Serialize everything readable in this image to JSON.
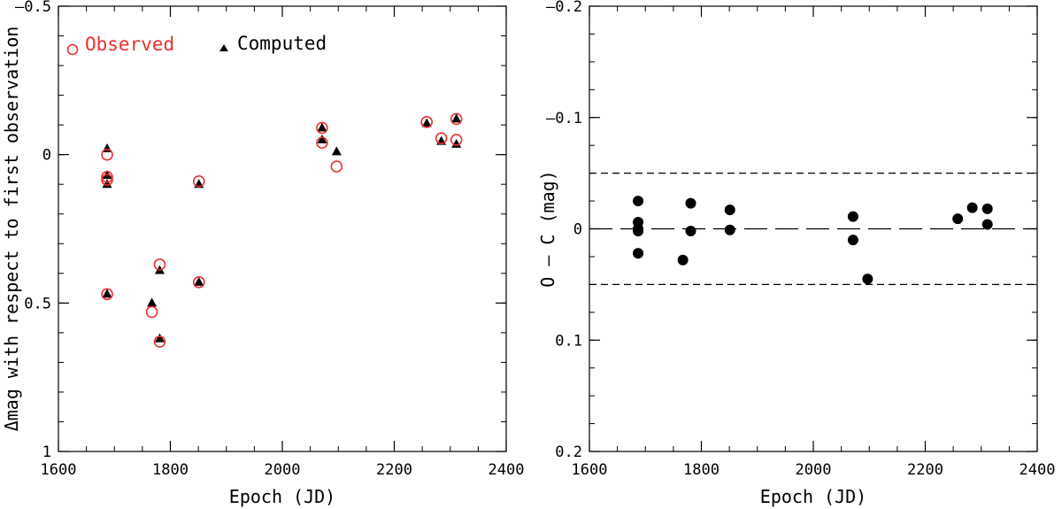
{
  "chart_data": [
    {
      "type": "scatter",
      "xlabel": "Epoch (JD)",
      "ylabel": "Δmag with respect to first observation",
      "xlim": [
        1600,
        2400
      ],
      "ylim": [
        -0.5,
        1
      ],
      "y_inverted": true,
      "x_ticks": [
        "1600",
        "1800",
        "2000",
        "2200",
        "2400"
      ],
      "y_ticks": [
        "–0.5",
        "0",
        "0.5",
        "1"
      ],
      "x_tick_values": [
        1600,
        1800,
        2000,
        2200,
        2400
      ],
      "y_tick_values": [
        -0.5,
        0,
        0.5,
        1
      ],
      "legend": [
        {
          "label": "Observed",
          "color": "#e8312f",
          "marker": "open-circle"
        },
        {
          "label": "Computed",
          "color": "#000000",
          "marker": "filled-triangle"
        }
      ],
      "legend_position": "top-left",
      "series": [
        {
          "name": "Observed",
          "points": [
            [
              1687,
              0.0
            ],
            [
              1687,
              0.075
            ],
            [
              1687,
              0.085
            ],
            [
              1687,
              0.47
            ],
            [
              1767,
              0.53
            ],
            [
              1781,
              0.37
            ],
            [
              1781,
              0.63
            ],
            [
              1851,
              0.09
            ],
            [
              1851,
              0.43
            ],
            [
              2071,
              -0.09
            ],
            [
              2071,
              -0.04
            ],
            [
              2097,
              0.04
            ],
            [
              2258,
              -0.11
            ],
            [
              2284,
              -0.055
            ],
            [
              2311,
              -0.12
            ],
            [
              2311,
              -0.05
            ]
          ]
        },
        {
          "name": "Computed",
          "points": [
            [
              1687,
              -0.02
            ],
            [
              1687,
              0.07
            ],
            [
              1687,
              0.1
            ],
            [
              1687,
              0.47
            ],
            [
              1767,
              0.5
            ],
            [
              1781,
              0.39
            ],
            [
              1781,
              0.62
            ],
            [
              1851,
              0.1
            ],
            [
              1851,
              0.43
            ],
            [
              2071,
              -0.09
            ],
            [
              2071,
              -0.05
            ],
            [
              2097,
              -0.01
            ],
            [
              2258,
              -0.105
            ],
            [
              2284,
              -0.045
            ],
            [
              2311,
              -0.12
            ],
            [
              2311,
              -0.035
            ]
          ]
        }
      ]
    },
    {
      "type": "scatter",
      "xlabel": "Epoch (JD)",
      "ylabel": "O – C (mag)",
      "xlim": [
        1600,
        2400
      ],
      "ylim": [
        -0.2,
        0.2
      ],
      "y_inverted": true,
      "x_ticks": [
        "1600",
        "1800",
        "2000",
        "2200",
        "2400"
      ],
      "y_ticks": [
        "–0.2",
        "–0.1",
        "0",
        "0.1",
        "0.2"
      ],
      "x_tick_values": [
        1600,
        1800,
        2000,
        2200,
        2400
      ],
      "y_tick_values": [
        -0.2,
        -0.1,
        0,
        0.1,
        0.2
      ],
      "reference_lines": [
        {
          "y": -0.05,
          "style": "short-dashed"
        },
        {
          "y": 0,
          "style": "long-dashed"
        },
        {
          "y": 0.05,
          "style": "short-dashed"
        }
      ],
      "series": [
        {
          "points": [
            [
              1687,
              -0.025
            ],
            [
              1687,
              -0.006
            ],
            [
              1687,
              0.0
            ],
            [
              1687,
              0.002
            ],
            [
              1687,
              0.022
            ],
            [
              1767,
              0.028
            ],
            [
              1781,
              -0.023
            ],
            [
              1781,
              0.002
            ],
            [
              1851,
              -0.017
            ],
            [
              1851,
              0.001
            ],
            [
              2071,
              -0.011
            ],
            [
              2071,
              0.01
            ],
            [
              2097,
              0.045
            ],
            [
              2258,
              -0.009
            ],
            [
              2284,
              -0.019
            ],
            [
              2311,
              -0.018
            ],
            [
              2311,
              -0.004
            ]
          ]
        }
      ]
    }
  ]
}
